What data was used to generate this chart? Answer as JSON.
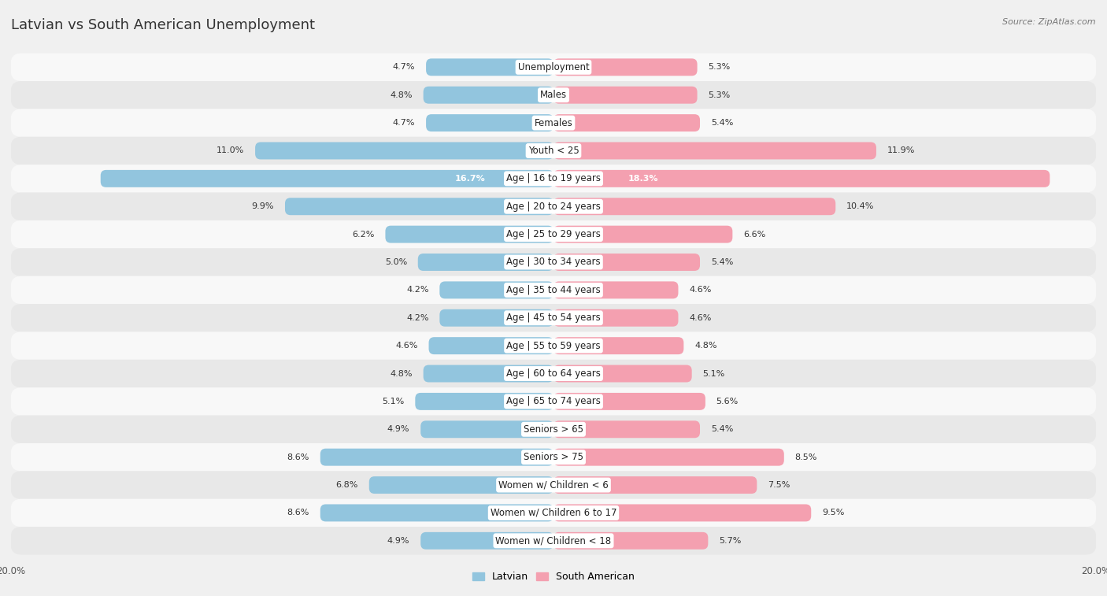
{
  "title": "Latvian vs South American Unemployment",
  "source": "Source: ZipAtlas.com",
  "categories": [
    "Unemployment",
    "Males",
    "Females",
    "Youth < 25",
    "Age | 16 to 19 years",
    "Age | 20 to 24 years",
    "Age | 25 to 29 years",
    "Age | 30 to 34 years",
    "Age | 35 to 44 years",
    "Age | 45 to 54 years",
    "Age | 55 to 59 years",
    "Age | 60 to 64 years",
    "Age | 65 to 74 years",
    "Seniors > 65",
    "Seniors > 75",
    "Women w/ Children < 6",
    "Women w/ Children 6 to 17",
    "Women w/ Children < 18"
  ],
  "latvian": [
    4.7,
    4.8,
    4.7,
    11.0,
    16.7,
    9.9,
    6.2,
    5.0,
    4.2,
    4.2,
    4.6,
    4.8,
    5.1,
    4.9,
    8.6,
    6.8,
    8.6,
    4.9
  ],
  "south_american": [
    5.3,
    5.3,
    5.4,
    11.9,
    18.3,
    10.4,
    6.6,
    5.4,
    4.6,
    4.6,
    4.8,
    5.1,
    5.6,
    5.4,
    8.5,
    7.5,
    9.5,
    5.7
  ],
  "latvian_color": "#92c5de",
  "south_american_color": "#f4a0b0",
  "xlim": 20.0,
  "bg_color": "#f0f0f0",
  "row_bg_light": "#f8f8f8",
  "row_bg_dark": "#e8e8e8",
  "title_fontsize": 13,
  "label_fontsize": 8.5,
  "value_fontsize": 8.0,
  "axis_label_fontsize": 8.5,
  "highlight_index": 4
}
